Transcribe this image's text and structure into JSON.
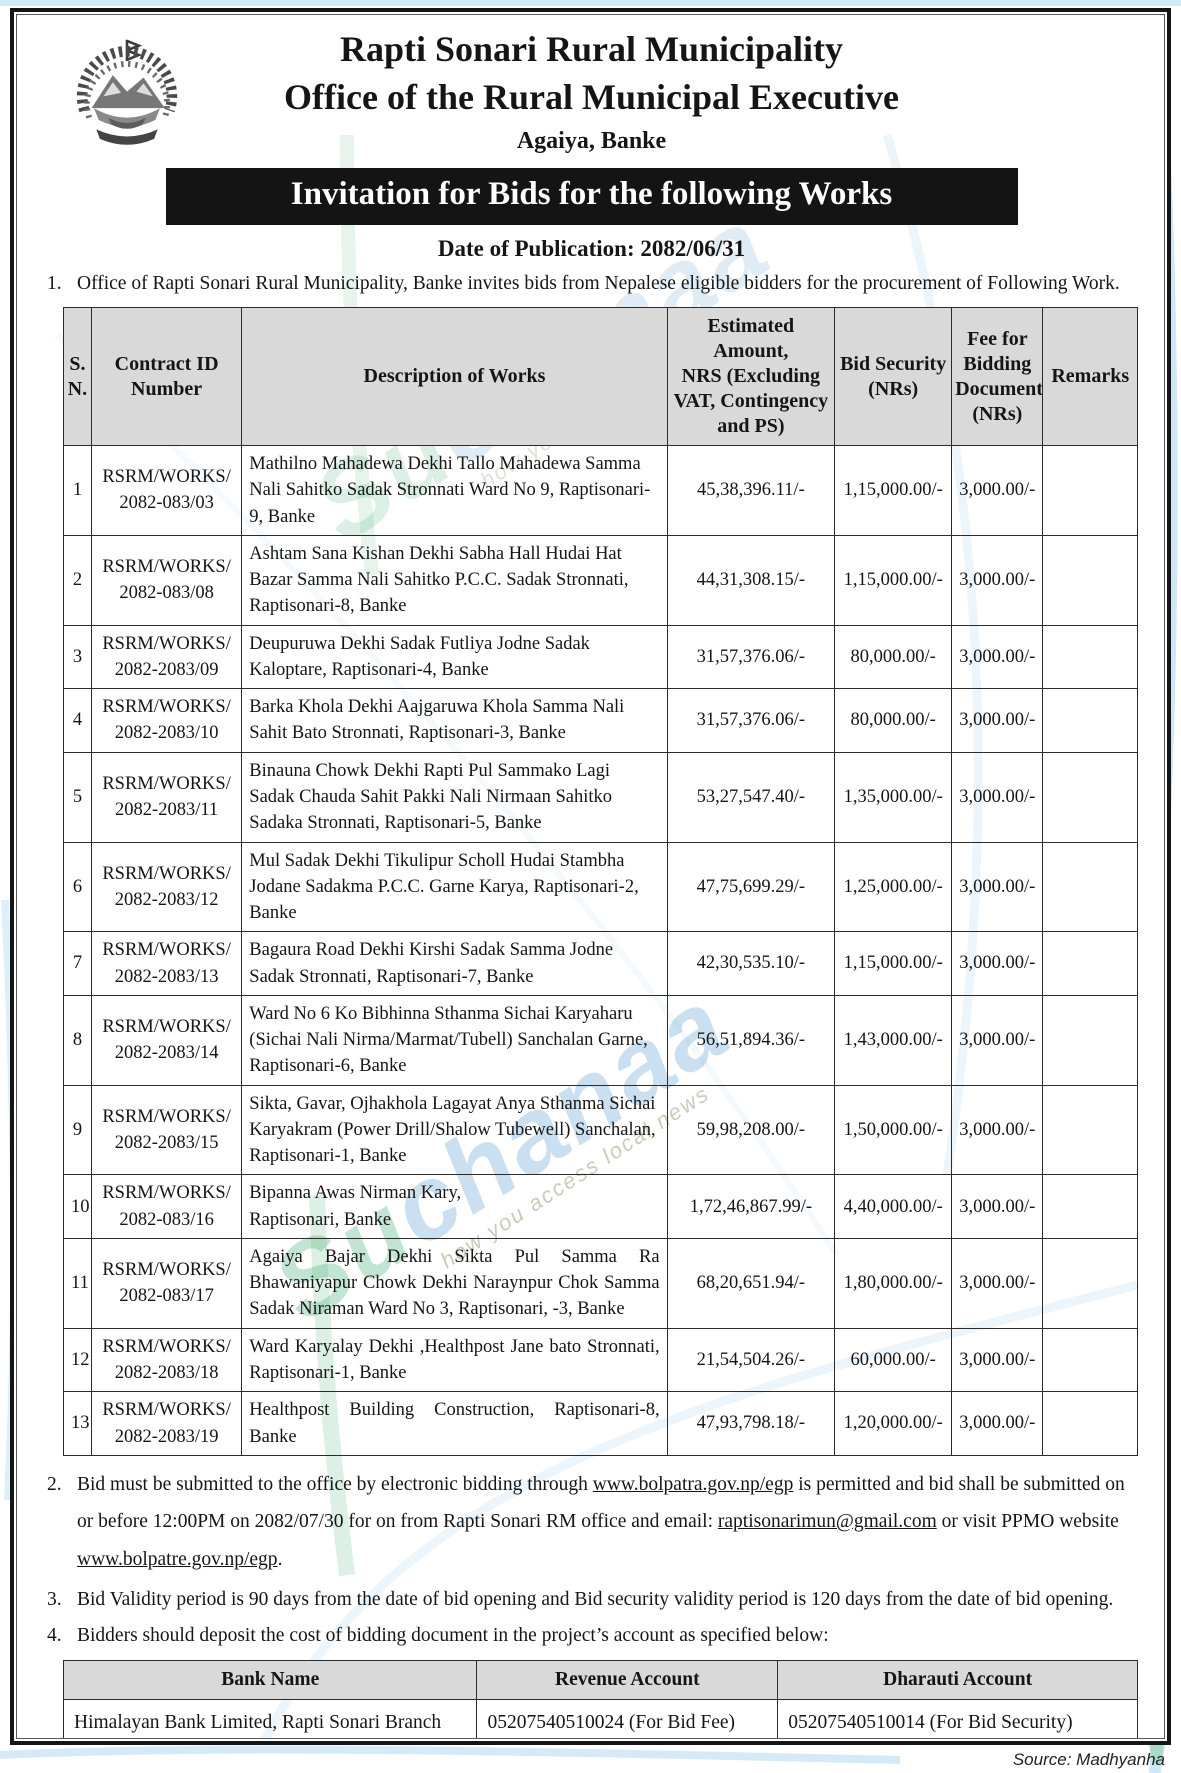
{
  "header": {
    "municipality": "Rapti Sonari Rural Municipality",
    "office": "Office of the Rural Municipal Executive",
    "location": "Agaiya, Banke",
    "banner": "Invitation for Bids for the following Works",
    "publication_date": "Date of Publication: 2082/06/31",
    "logo": "nepal-government-emblem"
  },
  "notes": {
    "n1_num": "1.",
    "n1": "Office of Rapti Sonari Rural Municipality, Banke invites bids from Nepalese eligible bidders for the procurement of Following Work.",
    "n2_num": "2.",
    "n2_p1": "Bid must be submitted to the office by electronic bidding through ",
    "n2_link1": "www.bolpatra.gov.np/egp",
    "n2_p2": " is permitted and bid shall be submitted on or before 12:00PM on 2082/07/30 for on from Rapti Sonari RM office and email: ",
    "n2_link2": "raptisonarimun@gmail.com",
    "n2_p3": " or visit PPMO website ",
    "n2_link3": "www.bolpatre.gov.np/egp",
    "n2_p4": ".",
    "n3_num": "3.",
    "n3": "Bid Validity period is 90 days from the date of bid opening and Bid security validity period is 120 days from the date of bid opening.",
    "n4_num": "4.",
    "n4": "Bidders should deposit the cost of bidding document in the project’s account as specified below:"
  },
  "works_table": {
    "headers": {
      "sn": "S.\nN.",
      "contract": "Contract ID\nNumber",
      "description": "Description of Works",
      "estimated": "Estimated Amount,\nNRS (Excluding\nVAT, Contingency\nand PS)",
      "bid_security": "Bid Security\n(NRs)",
      "fee": "Fee for\nBidding\nDocument\n(NRs)",
      "remarks": "Remarks"
    },
    "rows": [
      {
        "sn": "1",
        "contract": "RSRM/WORKS/\n2082-083/03",
        "description": "Mathilno Mahadewa Dekhi Tallo Mahadewa Samma Nali Sahitko Sadak Stronnati Ward No 9, Raptisonari-9, Banke",
        "estimated": "45,38,396.11/-",
        "bid_security": "1,15,000.00/-",
        "fee": "3,000.00/-",
        "remarks": "",
        "justify": false
      },
      {
        "sn": "2",
        "contract": "RSRM/WORKS/\n2082-083/08",
        "description": "Ashtam Sana Kishan Dekhi Sabha Hall Hudai Hat Bazar Samma Nali Sahitko P.C.C. Sadak Stronnati, Raptisonari-8, Banke",
        "estimated": "44,31,308.15/-",
        "bid_security": "1,15,000.00/-",
        "fee": "3,000.00/-",
        "remarks": "",
        "justify": false
      },
      {
        "sn": "3",
        "contract": "RSRM/WORKS/\n2082-2083/09",
        "description": "Deupuruwa Dekhi Sadak Futliya Jodne Sadak Kaloptare, Raptisonari-4, Banke",
        "estimated": "31,57,376.06/-",
        "bid_security": "80,000.00/-",
        "fee": "3,000.00/-",
        "remarks": "",
        "justify": false
      },
      {
        "sn": "4",
        "contract": "RSRM/WORKS/\n2082-2083/10",
        "description": " Barka Khola Dekhi Aajgaruwa Khola Samma Nali Sahit Bato Stronnati, Raptisonari-3, Banke",
        "estimated": "31,57,376.06/-",
        "bid_security": "80,000.00/-",
        "fee": "3,000.00/-",
        "remarks": "",
        "justify": false
      },
      {
        "sn": "5",
        "contract": "RSRM/WORKS/\n2082-2083/11",
        "description": "Binauna Chowk Dekhi Rapti Pul Sammako Lagi Sadak Chauda Sahit Pakki Nali Nirmaan Sahitko Sadaka Stronnati, Raptisonari-5, Banke",
        "estimated": "53,27,547.40/-",
        "bid_security": "1,35,000.00/-",
        "fee": "3,000.00/-",
        "remarks": "",
        "justify": false
      },
      {
        "sn": "6",
        "contract": "RSRM/WORKS/\n2082-2083/12",
        "description": "Mul Sadak Dekhi Tikulipur Scholl Hudai Stambha Jodane Sadakma P.C.C. Garne Karya, Raptisonari-2, Banke",
        "estimated": "47,75,699.29/-",
        "bid_security": "1,25,000.00/-",
        "fee": "3,000.00/-",
        "remarks": "",
        "justify": false
      },
      {
        "sn": "7",
        "contract": "RSRM/WORKS/\n2082-2083/13",
        "description": "Bagaura Road Dekhi Kirshi Sadak Samma Jodne Sadak Stronnati, Raptisonari-7, Banke",
        "estimated": "42,30,535.10/-",
        "bid_security": "1,15,000.00/-",
        "fee": "3,000.00/-",
        "remarks": "",
        "justify": false
      },
      {
        "sn": "8",
        "contract": "RSRM/WORKS/\n2082-2083/14",
        "description": "Ward No 6 Ko Bibhinna Sthanma Sichai Karyaharu (Sichai Nali Nirma/Marmat/Tubell) Sanchalan Garne, Raptisonari-6, Banke",
        "estimated": "56,51,894.36/-",
        "bid_security": "1,43,000.00/-",
        "fee": "3,000.00/-",
        "remarks": "",
        "justify": false
      },
      {
        "sn": "9",
        "contract": "RSRM/WORKS/\n2082-2083/15",
        "description": "Sikta, Gavar, Ojhakhola Lagayat Anya Sthanma Sichai Karyakram (Power Drill/Shalow Tubewell) Sanchalan, Raptisonari-1, Banke",
        "estimated": "59,98,208.00/-",
        "bid_security": "1,50,000.00/-",
        "fee": "3,000.00/-",
        "remarks": "",
        "justify": false
      },
      {
        "sn": "10",
        "contract": "RSRM/WORKS/\n2082-083/16",
        "description": "Bipanna Awas Nirman Kary,\nRaptisonari, Banke",
        "estimated": "1,72,46,867.99/-",
        "bid_security": "4,40,000.00/-",
        "fee": "3,000.00/-",
        "remarks": "",
        "justify": false
      },
      {
        "sn": "11",
        "contract": "RSRM/WORKS/\n2082-083/17",
        "description": "Agaiya Bajar Dekhi Sikta Pul Samma Ra Bhawaniyapur Chowk Dekhi Naraynpur Chok Samma Sadak Niraman Ward No 3, Raptisonari, -3, Banke",
        "estimated": "68,20,651.94/-",
        "bid_security": "1,80,000.00/-",
        "fee": "3,000.00/-",
        "remarks": "",
        "justify": true
      },
      {
        "sn": "12",
        "contract": "RSRM/WORKS/\n2082-2083/18",
        "description": "Ward Karyalay Dekhi ,Healthpost Jane bato Stronnati, Raptisonari-1, Banke",
        "estimated": "21,54,504.26/-",
        "bid_security": "60,000.00/-",
        "fee": "3,000.00/-",
        "remarks": "",
        "justify": true
      },
      {
        "sn": "13",
        "contract": "RSRM/WORKS/\n2082-2083/19",
        "description": "Healthpost Building Construction, Raptisonari-8, Banke",
        "estimated": "47,93,798.18/-",
        "bid_security": "1,20,000.00/-",
        "fee": "3,000.00/-",
        "remarks": "",
        "justify": true
      }
    ]
  },
  "bank_table": {
    "headers": [
      "Bank Name",
      "Revenue Account",
      "Dharauti Account"
    ],
    "rows": [
      [
        "Himalayan Bank Limited, Rapti Sonari Branch",
        "05207540510024 (For Bid Fee)",
        "05207540510014 (For Bid Security)"
      ]
    ]
  },
  "watermark": {
    "part1": "Su",
    "part2": "chanaa",
    "tagline": "how you access local news"
  },
  "footer": {
    "source": "Source: Madhyanha"
  },
  "colors": {
    "banner_bg": "#141414",
    "banner_text": "#ffffff",
    "table_header_bg": "#d9d9d9",
    "watermark_blue": "#7aafd6",
    "watermark_green": "#64b98c",
    "page_accent": "#d2e9f4"
  }
}
